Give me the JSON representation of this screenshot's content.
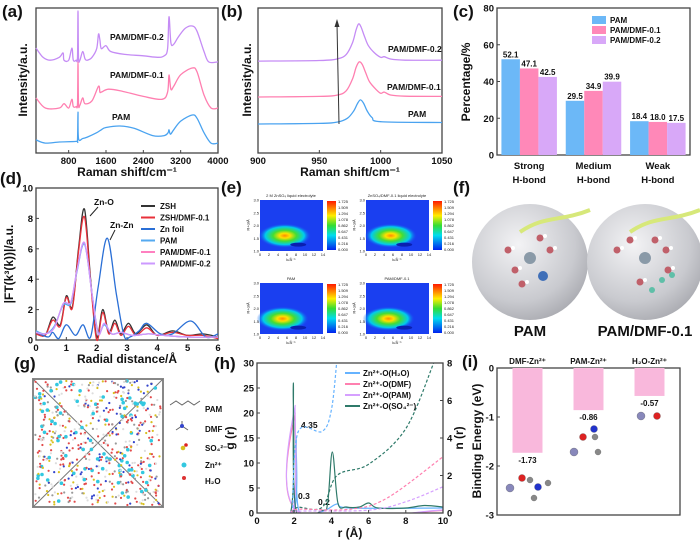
{
  "panel_labels": [
    "(a)",
    "(b)",
    "(c)",
    "(d)",
    "(e)",
    "(f)",
    "(g)",
    "(h)",
    "(i)"
  ],
  "chart_data": [
    {
      "panel": "a",
      "type": "line",
      "xlabel": "Raman shift/cm⁻¹",
      "ylabel": "Intensity/a.u.",
      "xlim": [
        100,
        4000
      ],
      "xticks": [
        800,
        1600,
        2400,
        3200,
        4000
      ],
      "series": [
        {
          "name": "PAM/DMF-0.2",
          "color": "#c58cf5",
          "x": [
            100,
            250,
            400,
            600,
            680,
            700,
            800,
            870,
            900,
            960,
            990,
            1000,
            1010,
            1040,
            1100,
            1150,
            1200,
            1300,
            1400,
            1440,
            1470,
            1500,
            1600,
            1700,
            2000,
            2400,
            2700,
            2850,
            2920,
            2950,
            2990,
            3050,
            3150,
            3300,
            3450,
            3550,
            3700,
            3800,
            4000
          ],
          "y": [
            3.62,
            3.3,
            3.2,
            3.3,
            3.45,
            3.2,
            3.2,
            3.62,
            3.2,
            3.2,
            3.3,
            4.9,
            3.3,
            3.2,
            3.5,
            3.25,
            3.2,
            3.3,
            3.6,
            4.1,
            3.9,
            3.6,
            3.7,
            3.5,
            3.4,
            3.35,
            3.3,
            3.35,
            3.6,
            4.7,
            3.8,
            3.75,
            4.0,
            4.3,
            4.38,
            4.2,
            3.5,
            3.14,
            3.14
          ]
        },
        {
          "name": "PAM/DMF-0.1",
          "color": "#ff7fb0",
          "x": [
            100,
            300,
            600,
            700,
            800,
            870,
            900,
            960,
            990,
            1000,
            1010,
            1040,
            1100,
            1150,
            1300,
            1440,
            1470,
            1500,
            1650,
            1900,
            2400,
            2800,
            2920,
            2950,
            2990,
            3050,
            3200,
            3450,
            3550,
            3700,
            3850,
            4000
          ],
          "y": [
            1.9,
            1.55,
            1.55,
            1.7,
            1.55,
            1.85,
            1.6,
            1.6,
            1.7,
            3.14,
            1.7,
            1.65,
            1.9,
            1.7,
            1.8,
            2.3,
            2.1,
            2.1,
            2.2,
            2.15,
            1.95,
            1.85,
            2.1,
            2.69,
            2.2,
            2.3,
            2.7,
            2.93,
            2.8,
            2.0,
            1.55,
            1.55
          ]
        },
        {
          "name": "PAM",
          "color": "#4aa3f0",
          "x": [
            100,
            300,
            600,
            960,
            990,
            1000,
            1010,
            1100,
            1200,
            1400,
            1500,
            1600,
            1900,
            2200,
            2600,
            2850,
            2930,
            2950,
            2980,
            3050,
            3200,
            3450,
            3550,
            3700,
            3850,
            4000
          ],
          "y": [
            0.45,
            0.34,
            0.38,
            0.4,
            0.45,
            1.41,
            0.5,
            0.5,
            0.55,
            0.7,
            0.8,
            0.88,
            0.93,
            0.85,
            0.6,
            0.6,
            0.7,
            0.8,
            0.65,
            0.8,
            1.1,
            1.31,
            1.2,
            0.7,
            0.34,
            0.34
          ]
        }
      ]
    },
    {
      "panel": "b",
      "type": "line",
      "xlabel": "Raman shift/cm⁻¹",
      "ylabel": "Intensity/a.u.",
      "xlim": [
        900,
        1050
      ],
      "xticks": [
        900,
        950,
        1000,
        1050
      ],
      "series": [
        {
          "name": "PAM/DMF-0.2",
          "color": "#c58cf5",
          "x": [
            900,
            950,
            965,
            972,
            977,
            980,
            982,
            984,
            987,
            990,
            995,
            1000,
            1003,
            1008,
            1020,
            1050
          ],
          "y": [
            3.17,
            3.19,
            3.25,
            3.4,
            3.8,
            4.25,
            4.45,
            4.35,
            4.0,
            3.7,
            3.45,
            3.3,
            3.32,
            3.24,
            3.2,
            3.2
          ]
        },
        {
          "name": "PAM/DMF-0.1",
          "color": "#ff7fb0",
          "x": [
            900,
            950,
            965,
            972,
            977,
            980,
            982.5,
            985,
            988,
            991,
            996,
            1000,
            1003,
            1008,
            1020,
            1050
          ],
          "y": [
            1.93,
            1.95,
            2.0,
            2.15,
            2.55,
            2.95,
            3.14,
            3.05,
            2.75,
            2.45,
            2.2,
            2.06,
            2.1,
            2.0,
            1.96,
            1.95
          ]
        },
        {
          "name": "PAM",
          "color": "#4aa3f0",
          "x": [
            900,
            950,
            965,
            973,
            978,
            981,
            983.5,
            986,
            989,
            993,
            1000,
            1050
          ],
          "y": [
            1.0,
            1.02,
            1.07,
            1.2,
            1.45,
            1.7,
            1.83,
            1.72,
            1.45,
            1.22,
            1.08,
            1.05
          ]
        }
      ],
      "annotation": "arrow indicating peak shift"
    },
    {
      "panel": "c",
      "type": "bar",
      "ylabel": "Percentage/%",
      "ylim": [
        0,
        80
      ],
      "yticks": [
        0,
        20,
        40,
        60,
        80
      ],
      "categories": [
        [
          "Strong",
          "H-bond"
        ],
        [
          "Medium",
          "H-bond"
        ],
        [
          "Weak",
          "H-bond"
        ]
      ],
      "legend": "top-right",
      "series": [
        {
          "name": "PAM",
          "color": "#6cb8f7",
          "values": [
            52.1,
            29.5,
            18.4
          ],
          "labels": [
            "52.1",
            "29.5",
            "18.4"
          ]
        },
        {
          "name": "PAM/DMF-0.1",
          "color": "#ff88b8",
          "values": [
            47.1,
            34.9,
            18.0
          ],
          "labels": [
            "47.1",
            "34.9",
            "18.0"
          ]
        },
        {
          "name": "PAM/DMF-0.2",
          "color": "#d8a8f8",
          "values": [
            42.5,
            39.9,
            17.5
          ],
          "labels": [
            "42.5",
            "39.9",
            "17.5"
          ]
        }
      ]
    },
    {
      "panel": "d",
      "type": "line",
      "xlabel": "Radial distance/Å",
      "ylabel": "|FT(k³(k))|/a.u.",
      "xlim": [
        0,
        6
      ],
      "ylim": [
        0,
        10
      ],
      "xticks": [
        0,
        1,
        2,
        3,
        4,
        5,
        6
      ],
      "yticks": [
        0,
        2,
        4,
        6,
        8,
        10
      ],
      "legend": "top-right",
      "annotations": [
        "Zn-O",
        "Zn-Zn"
      ],
      "series": [
        {
          "name": "ZSH",
          "color": "#333333",
          "x": [
            0,
            0.3,
            0.55,
            0.8,
            1.0,
            1.2,
            1.4,
            1.6,
            1.8,
            2.0,
            2.2,
            2.4,
            2.6,
            2.8,
            3.05,
            3.3,
            3.65,
            4.0,
            4.5,
            5.0,
            5.5,
            6.0
          ],
          "y": [
            0.5,
            0.3,
            1.5,
            1.0,
            2.9,
            2.2,
            6.0,
            8.6,
            4.0,
            0.2,
            2.0,
            0.5,
            1.3,
            0.4,
            1.1,
            0.4,
            1.0,
            0.3,
            0.6,
            0.3,
            0.4,
            0.2
          ]
        },
        {
          "name": "ZSH/DMF-0.1",
          "color": "#e8303a",
          "x": [
            0,
            0.3,
            0.55,
            0.8,
            1.0,
            1.2,
            1.4,
            1.6,
            1.8,
            2.0,
            2.2,
            2.4,
            2.6,
            2.8,
            3.05,
            3.3,
            3.65,
            4.0,
            4.5,
            5.0,
            5.5,
            6.0
          ],
          "y": [
            0.4,
            0.3,
            1.3,
            0.9,
            2.8,
            2.1,
            5.8,
            8.1,
            3.8,
            0.0,
            1.8,
            0.4,
            1.1,
            0.3,
            0.9,
            0.3,
            0.8,
            0.3,
            0.5,
            0.3,
            0.3,
            0.1
          ]
        },
        {
          "name": "Zn foil",
          "color": "#2a6fd6",
          "x": [
            0,
            0.4,
            0.55,
            0.75,
            1.0,
            1.3,
            1.55,
            1.8,
            2.05,
            2.35,
            2.65,
            2.9,
            3.1,
            3.4,
            3.65,
            4.1,
            4.5,
            5.1,
            5.6,
            6.0
          ],
          "y": [
            0.5,
            0.2,
            0.5,
            0.1,
            1.0,
            0.3,
            1.0,
            0.2,
            3.5,
            6.7,
            3.0,
            0.3,
            0.2,
            0.6,
            1.1,
            0.4,
            0.4,
            1.25,
            0.2,
            0.4
          ]
        },
        {
          "name": "PAM",
          "color": "#55aaf0",
          "x": [
            0,
            0.3,
            0.6,
            0.9,
            1.15,
            1.35,
            1.6,
            1.85,
            2.05,
            2.25,
            2.5,
            2.8,
            3.2,
            3.7,
            4.2,
            5.0,
            6.0
          ],
          "y": [
            0.6,
            0.4,
            0.9,
            2.3,
            2.4,
            4.5,
            6.3,
            3.0,
            0.5,
            1.0,
            0.4,
            0.5,
            0.3,
            0.4,
            0.3,
            0.2,
            0.2
          ]
        },
        {
          "name": "PAM/DMF-0.1",
          "color": "#ff80c0",
          "x": [
            0,
            0.3,
            0.6,
            0.9,
            1.15,
            1.35,
            1.6,
            1.85,
            2.05,
            2.25,
            2.5,
            2.8,
            3.2,
            3.7,
            4.2,
            5.0,
            6.0
          ],
          "y": [
            0.5,
            0.4,
            0.8,
            2.4,
            2.5,
            4.6,
            6.4,
            3.0,
            0.4,
            1.1,
            0.4,
            0.5,
            0.3,
            0.4,
            0.3,
            0.2,
            0.2
          ]
        },
        {
          "name": "PAM/DMF-0.2",
          "color": "#cc99ff",
          "x": [
            0,
            0.3,
            0.6,
            0.9,
            1.15,
            1.35,
            1.6,
            1.85,
            2.05,
            2.25,
            2.5,
            2.8,
            3.2,
            3.7,
            4.2,
            5.0,
            6.0
          ],
          "y": [
            0.5,
            0.4,
            0.8,
            2.4,
            2.5,
            4.6,
            6.4,
            3.0,
            0.4,
            1.1,
            0.4,
            0.5,
            0.3,
            0.4,
            0.3,
            0.2,
            0.2
          ]
        }
      ]
    },
    {
      "panel": "e",
      "type": "heatmap",
      "xlabel": "k/Å⁻¹",
      "ylabel": "R+α/Å",
      "xticks": [
        0,
        2,
        4,
        6,
        8,
        10,
        12,
        14
      ],
      "yticks": [
        1.0,
        1.5,
        2.0,
        2.5,
        3.0
      ],
      "colorbar_ticks": [
        "1.725",
        "1.509",
        "1.294",
        "1.078",
        "0.862",
        "0.647",
        "0.431",
        "0.216",
        "0.000"
      ],
      "maps": [
        {
          "title": "2 M ZnSO₄ liquid electrolyte",
          "peak_k": 5.5,
          "peak_R": 1.6
        },
        {
          "title": "ZnSO₄/DMF-0.1 liquid electrolyte",
          "peak_k": 5.5,
          "peak_R": 1.6
        },
        {
          "title": "PAM",
          "peak_k": 5.0,
          "peak_R": 1.6
        },
        {
          "title": "PAM/DMF-0.1",
          "peak_k": 5.0,
          "peak_R": 1.6
        }
      ]
    },
    {
      "panel": "h",
      "type": "line",
      "xlabel": "r (Å)",
      "ylabel": "g (r)",
      "ylabel_right": "n (r)",
      "xlim": [
        0,
        10
      ],
      "ylim": [
        0,
        30
      ],
      "ylim_right": [
        0,
        8
      ],
      "xticks": [
        0,
        2,
        4,
        6,
        8,
        10
      ],
      "yticks": [
        0,
        5,
        10,
        15,
        20,
        25,
        30
      ],
      "yticks_right": [
        0,
        2,
        4,
        6,
        8
      ],
      "legend": "top-right",
      "annotations": [
        {
          "text": "4.35",
          "color": "#66b3ff"
        },
        {
          "text": "0.3",
          "color": "#2f7a6a"
        },
        {
          "text": "0.2",
          "color": "#ff80b0"
        }
      ],
      "series": [
        {
          "name": "Zn²⁺-O(H₂O)",
          "color": "#66b3ff",
          "axis": "left",
          "x": [
            0,
            1.95,
            2.1,
            2.25,
            3.5,
            4.3,
            5.0,
            10
          ],
          "y": [
            0,
            0,
            15,
            0.5,
            0.3,
            1.8,
            1.0,
            1.0
          ]
        },
        {
          "name": "Zn²⁺-O(DMF)",
          "color": "#ff80b0",
          "axis": "left",
          "x": [
            0,
            1.9,
            2.05,
            2.2,
            10
          ],
          "y": [
            0,
            0,
            20,
            0.3,
            0.5
          ]
        },
        {
          "name": "Zn²⁺-O(PAM)",
          "color": "#d6a0ff",
          "axis": "left",
          "x": [
            0,
            1.9,
            2.05,
            2.2,
            10
          ],
          "y": [
            0,
            0,
            21.5,
            0.3,
            0.6
          ]
        },
        {
          "name": "Zn²⁺-O(SO₄²⁻)",
          "color": "#2f7a6a",
          "axis": "left",
          "x": [
            0,
            1.8,
            1.95,
            2.1,
            3.5,
            3.8,
            4.05,
            4.35,
            4.8,
            5.5,
            6.0,
            6.5,
            8.0,
            9.0,
            10
          ],
          "y": [
            0,
            0,
            26,
            0.5,
            0.5,
            2,
            12.2,
            2,
            1.2,
            1.2,
            2,
            1,
            1,
            1.5,
            1.2
          ]
        },
        {
          "color": "#66b3ff",
          "axis": "right",
          "style": "dashed",
          "x": [
            1.9,
            2.2,
            3.5,
            4.0,
            4.3
          ],
          "y": [
            0,
            4.3,
            4.35,
            5.5,
            8.2
          ]
        },
        {
          "color": "#2f7a6a",
          "axis": "right",
          "style": "dashed",
          "x": [
            1.9,
            2.2,
            3.5,
            4.3,
            6,
            8,
            9.5
          ],
          "y": [
            0,
            0.3,
            0.3,
            2.0,
            2.6,
            4.5,
            8
          ]
        },
        {
          "color": "#ff80b0",
          "axis": "right",
          "style": "dashed",
          "x": [
            1.9,
            2.2,
            5,
            7,
            10
          ],
          "y": [
            0,
            0.2,
            0.2,
            0.8,
            3
          ]
        },
        {
          "color": "#d6a0ff",
          "axis": "right",
          "style": "dashed",
          "x": [
            1.9,
            2.2,
            6,
            8,
            10
          ],
          "y": [
            0,
            0.1,
            0.15,
            0.6,
            1.4
          ]
        }
      ]
    },
    {
      "panel": "i",
      "type": "bar",
      "ylabel": "Binding Energy (eV)",
      "ylim": [
        -3,
        0
      ],
      "yticks": [
        0,
        -1,
        -2,
        -3
      ],
      "categories": [
        "DMF-Zn²⁺",
        "PAM-Zn²⁺",
        "H₂O-Zn²⁺"
      ],
      "values": [
        -1.73,
        -0.86,
        -0.57
      ],
      "labels": [
        "-1.73",
        "-0.86",
        "-0.57"
      ],
      "color": "#f9b8dc"
    }
  ],
  "panel_f": {
    "labels": [
      "PAM",
      "PAM/DMF-0.1"
    ]
  },
  "panel_g": {
    "legend": [
      "PAM",
      "DMF",
      "SO₄²⁻",
      "Zn²⁺",
      "H₂O"
    ]
  }
}
